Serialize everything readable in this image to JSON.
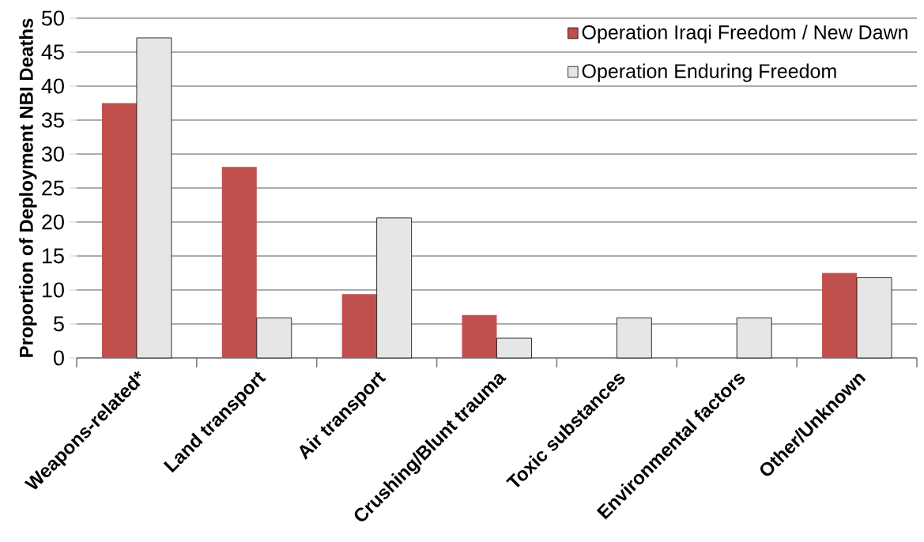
{
  "chart_data": {
    "type": "bar",
    "ylabel": "Proportion of Deployment NBI Deaths",
    "categories": [
      "Weapons-related*",
      "Land transport",
      "Air transport",
      "Crushing/Blunt trauma",
      "Toxic substances",
      "Environmental factors",
      "Other/Unknown"
    ],
    "series": [
      {
        "name": "Operation Iraqi Freedom / New Dawn",
        "color": "#c0504d",
        "values": [
          37.5,
          28.1,
          9.4,
          6.3,
          0,
          0,
          12.5
        ]
      },
      {
        "name": "Operation Enduring Freedom",
        "color": "#e6e6e6",
        "values": [
          47.1,
          5.9,
          20.6,
          2.9,
          5.9,
          5.9,
          11.8
        ]
      }
    ],
    "ylim": [
      0,
      50
    ],
    "yticks": [
      0,
      5,
      10,
      15,
      20,
      25,
      30,
      35,
      40,
      45,
      50
    ],
    "grid": "y",
    "legend": "top right"
  }
}
